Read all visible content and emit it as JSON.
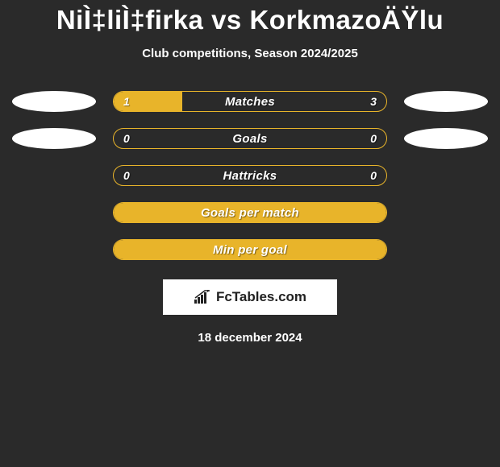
{
  "title": "NiÌ‡liÌ‡firka vs KorkmazoÄŸlu",
  "subtitle": "Club competitions, Season 2024/2025",
  "rows": [
    {
      "label": "Matches",
      "left_value": "1",
      "right_value": "3",
      "fill_pct": 25,
      "show_left_ellipse": true,
      "show_right_ellipse": true
    },
    {
      "label": "Goals",
      "left_value": "0",
      "right_value": "0",
      "fill_pct": 0,
      "show_left_ellipse": true,
      "show_right_ellipse": true
    },
    {
      "label": "Hattricks",
      "left_value": "0",
      "right_value": "0",
      "fill_pct": 0,
      "show_left_ellipse": false,
      "show_right_ellipse": false
    },
    {
      "label": "Goals per match",
      "left_value": "",
      "right_value": "",
      "fill_pct": 100,
      "show_left_ellipse": false,
      "show_right_ellipse": false
    },
    {
      "label": "Min per goal",
      "left_value": "",
      "right_value": "",
      "fill_pct": 100,
      "show_left_ellipse": false,
      "show_right_ellipse": false
    }
  ],
  "logo_text": "FcTables.com",
  "date": "18 december 2024",
  "colors": {
    "accent": "#e8b42a",
    "background": "#2a2a2a",
    "ellipse": "#ffffff"
  }
}
